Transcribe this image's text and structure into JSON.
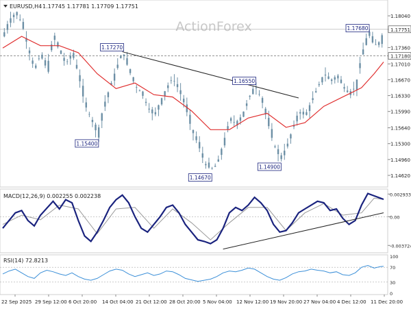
{
  "header": {
    "symbol": "EURUSD,H4",
    "ohlc": "1.17745 1.17781 1.17709 1.17751"
  },
  "watermark": "ActionForex",
  "chart_data": [
    {
      "type": "candlestick",
      "panel": "price",
      "ylim": [
        1.144,
        1.1835
      ],
      "y_ticks": [
        "1.18040",
        "1.17751",
        "1.17360",
        "1.17180",
        "1.17010",
        "1.16670",
        "1.16330",
        "1.15990",
        "1.15640",
        "1.15300",
        "1.14960",
        "1.14620"
      ],
      "current_price": "1.17751",
      "reference_price": "1.17180",
      "x_ticks": [
        "22 Sep 2025",
        "29 Sep 12:00",
        "6 Oct 20:00",
        "14 Oct 04:00",
        "21 Oct 12:00",
        "28 Oct 20:00",
        "5 Nov 04:00",
        "12 Nov 12:00",
        "19 Nov 20:00",
        "27 Nov 04:00",
        "4 Dec 12:00",
        "11 Dec 20:00"
      ],
      "price_path": [
        [
          0,
          1.176
        ],
        [
          2,
          1.1795
        ],
        [
          4,
          1.181
        ],
        [
          6,
          1.179
        ],
        [
          8,
          1.1735
        ],
        [
          10,
          1.169
        ],
        [
          12,
          1.172
        ],
        [
          14,
          1.169
        ],
        [
          16,
          1.176
        ],
        [
          18,
          1.173
        ],
        [
          20,
          1.17
        ],
        [
          22,
          1.1725
        ],
        [
          24,
          1.168
        ],
        [
          26,
          1.1615
        ],
        [
          28,
          1.1585
        ],
        [
          30,
          1.155
        ],
        [
          32,
          1.161
        ],
        [
          34,
          1.165
        ],
        [
          36,
          1.169
        ],
        [
          38,
          1.1727
        ],
        [
          40,
          1.169
        ],
        [
          42,
          1.1655
        ],
        [
          44,
          1.164
        ],
        [
          46,
          1.161
        ],
        [
          48,
          1.159
        ],
        [
          50,
          1.162
        ],
        [
          52,
          1.165
        ],
        [
          54,
          1.167
        ],
        [
          56,
          1.1645
        ],
        [
          58,
          1.161
        ],
        [
          60,
          1.156
        ],
        [
          62,
          1.153
        ],
        [
          64,
          1.149
        ],
        [
          66,
          1.1475
        ],
        [
          68,
          1.1485
        ],
        [
          70,
          1.153
        ],
        [
          72,
          1.158
        ],
        [
          74,
          1.1575
        ],
        [
          76,
          1.159
        ],
        [
          78,
          1.1625
        ],
        [
          80,
          1.1655
        ],
        [
          82,
          1.163
        ],
        [
          84,
          1.158
        ],
        [
          86,
          1.153
        ],
        [
          88,
          1.15
        ],
        [
          90,
          1.152
        ],
        [
          92,
          1.156
        ],
        [
          94,
          1.16
        ],
        [
          96,
          1.159
        ],
        [
          98,
          1.162
        ],
        [
          100,
          1.165
        ],
        [
          102,
          1.168
        ],
        [
          104,
          1.1665
        ],
        [
          106,
          1.1675
        ],
        [
          108,
          1.1655
        ],
        [
          110,
          1.164
        ],
        [
          112,
          1.165
        ],
        [
          114,
          1.172
        ],
        [
          116,
          1.1768
        ],
        [
          118,
          1.174
        ],
        [
          120,
          1.175
        ],
        [
          121,
          1.1775
        ]
      ],
      "ema_path": [
        [
          0,
          1.1735
        ],
        [
          6,
          1.176
        ],
        [
          12,
          1.174
        ],
        [
          18,
          1.174
        ],
        [
          24,
          1.1725
        ],
        [
          30,
          1.168
        ],
        [
          36,
          1.1648
        ],
        [
          42,
          1.166
        ],
        [
          48,
          1.1635
        ],
        [
          54,
          1.163
        ],
        [
          60,
          1.16
        ],
        [
          66,
          1.156
        ],
        [
          72,
          1.156
        ],
        [
          78,
          1.1585
        ],
        [
          84,
          1.1595
        ],
        [
          90,
          1.1565
        ],
        [
          96,
          1.1575
        ],
        [
          102,
          1.161
        ],
        [
          108,
          1.163
        ],
        [
          114,
          1.165
        ],
        [
          118,
          1.168
        ],
        [
          121,
          1.1705
        ]
      ],
      "annotations": [
        {
          "label": "1.15400",
          "at": [
            30,
            1.154
          ]
        },
        {
          "label": "1.17270",
          "at": [
            38,
            1.1727
          ]
        },
        {
          "label": "1.14670",
          "at": [
            66,
            1.1467
          ]
        },
        {
          "label": "1.16550",
          "at": [
            80,
            1.1655
          ]
        },
        {
          "label": "1.14900",
          "at": [
            88,
            1.149
          ]
        },
        {
          "label": "1.17680",
          "at": [
            116,
            1.1768
          ]
        }
      ],
      "trendline": [
        [
          38,
          1.1727
        ],
        [
          94,
          1.1628
        ]
      ]
    },
    {
      "type": "line",
      "panel": "macd",
      "title": "MACD(12,26,9) 0.002255 0.002238",
      "ylim": [
        -0.0045,
        0.0034
      ],
      "y_ticks": [
        "0.002933",
        "0.00",
        "-0.003724"
      ],
      "macd_path": [
        [
          0,
          -0.0015
        ],
        [
          4,
          0.0005
        ],
        [
          6,
          0.0008
        ],
        [
          8,
          -0.0005
        ],
        [
          10,
          -0.0012
        ],
        [
          12,
          0.0002
        ],
        [
          16,
          0.002
        ],
        [
          18,
          0.001
        ],
        [
          20,
          0.0022
        ],
        [
          22,
          0.0018
        ],
        [
          24,
          -0.0005
        ],
        [
          26,
          -0.0025
        ],
        [
          28,
          -0.0032
        ],
        [
          30,
          -0.002
        ],
        [
          32,
          -0.0005
        ],
        [
          34,
          0.0012
        ],
        [
          36,
          0.0022
        ],
        [
          38,
          0.0028
        ],
        [
          40,
          0.0018
        ],
        [
          42,
          0.0
        ],
        [
          44,
          -0.0015
        ],
        [
          46,
          -0.002
        ],
        [
          48,
          -0.001
        ],
        [
          50,
          0.0
        ],
        [
          52,
          0.0012
        ],
        [
          54,
          0.0015
        ],
        [
          56,
          0.0005
        ],
        [
          58,
          -0.001
        ],
        [
          60,
          -0.002
        ],
        [
          62,
          -0.003
        ],
        [
          64,
          -0.0032
        ],
        [
          66,
          -0.0035
        ],
        [
          68,
          -0.003
        ],
        [
          70,
          -0.0015
        ],
        [
          72,
          0.0005
        ],
        [
          74,
          0.0012
        ],
        [
          76,
          0.0008
        ],
        [
          78,
          0.0015
        ],
        [
          80,
          0.0025
        ],
        [
          82,
          0.0018
        ],
        [
          84,
          0.0008
        ],
        [
          86,
          -0.001
        ],
        [
          88,
          -0.002
        ],
        [
          90,
          -0.0018
        ],
        [
          92,
          -0.0008
        ],
        [
          94,
          0.0005
        ],
        [
          96,
          0.001
        ],
        [
          98,
          0.0015
        ],
        [
          100,
          0.002
        ],
        [
          102,
          0.0018
        ],
        [
          104,
          0.0008
        ],
        [
          106,
          0.001
        ],
        [
          108,
          -0.0002
        ],
        [
          110,
          -0.001
        ],
        [
          112,
          -0.0005
        ],
        [
          114,
          0.0015
        ],
        [
          116,
          0.003
        ],
        [
          118,
          0.0027
        ],
        [
          120,
          0.0024
        ],
        [
          121,
          0.00225
        ]
      ],
      "signal_path": [
        [
          0,
          -0.001
        ],
        [
          6,
          0.0002
        ],
        [
          12,
          -0.0004
        ],
        [
          18,
          0.0015
        ],
        [
          24,
          0.001
        ],
        [
          30,
          -0.0022
        ],
        [
          36,
          0.001
        ],
        [
          42,
          0.0012
        ],
        [
          48,
          -0.0015
        ],
        [
          54,
          0.001
        ],
        [
          60,
          -0.0008
        ],
        [
          66,
          -0.003
        ],
        [
          72,
          -0.0008
        ],
        [
          78,
          0.0012
        ],
        [
          84,
          0.0012
        ],
        [
          90,
          -0.0018
        ],
        [
          96,
          0.0005
        ],
        [
          102,
          0.0017
        ],
        [
          108,
          0.0002
        ],
        [
          114,
          0.0005
        ],
        [
          118,
          0.0024
        ],
        [
          121,
          0.00224
        ]
      ],
      "trendline": [
        [
          70,
          -0.0042
        ],
        [
          121,
          0.0005
        ]
      ]
    },
    {
      "type": "line",
      "panel": "rsi",
      "title": "RSI(14) 72.8213",
      "ylim": [
        0,
        100
      ],
      "y_ticks": [
        "100",
        "70",
        "30",
        "0"
      ],
      "rsi_path": [
        [
          0,
          52
        ],
        [
          2,
          60
        ],
        [
          4,
          65
        ],
        [
          6,
          55
        ],
        [
          8,
          45
        ],
        [
          10,
          40
        ],
        [
          12,
          55
        ],
        [
          14,
          62
        ],
        [
          16,
          58
        ],
        [
          18,
          52
        ],
        [
          20,
          48
        ],
        [
          22,
          55
        ],
        [
          24,
          45
        ],
        [
          26,
          38
        ],
        [
          28,
          35
        ],
        [
          30,
          40
        ],
        [
          32,
          50
        ],
        [
          34,
          60
        ],
        [
          36,
          65
        ],
        [
          38,
          62
        ],
        [
          40,
          52
        ],
        [
          42,
          45
        ],
        [
          44,
          50
        ],
        [
          46,
          55
        ],
        [
          48,
          48
        ],
        [
          50,
          52
        ],
        [
          52,
          60
        ],
        [
          54,
          58
        ],
        [
          56,
          50
        ],
        [
          58,
          40
        ],
        [
          60,
          36
        ],
        [
          62,
          32
        ],
        [
          64,
          35
        ],
        [
          66,
          38
        ],
        [
          68,
          45
        ],
        [
          70,
          55
        ],
        [
          72,
          60
        ],
        [
          74,
          58
        ],
        [
          76,
          62
        ],
        [
          78,
          68
        ],
        [
          80,
          65
        ],
        [
          82,
          55
        ],
        [
          84,
          45
        ],
        [
          86,
          38
        ],
        [
          88,
          35
        ],
        [
          90,
          42
        ],
        [
          92,
          52
        ],
        [
          94,
          58
        ],
        [
          96,
          60
        ],
        [
          98,
          65
        ],
        [
          100,
          62
        ],
        [
          102,
          60
        ],
        [
          104,
          55
        ],
        [
          106,
          58
        ],
        [
          108,
          50
        ],
        [
          110,
          48
        ],
        [
          112,
          55
        ],
        [
          114,
          70
        ],
        [
          116,
          75
        ],
        [
          118,
          68
        ],
        [
          120,
          72
        ],
        [
          121,
          72.8
        ]
      ]
    }
  ],
  "colors": {
    "background": "#ffffff",
    "candle": "#6c8fa5",
    "ema": "#e03030",
    "trendline": "#222222",
    "macd": "#1a237e",
    "signal": "#999999",
    "rsi": "#3b8fd8",
    "label_text": "#1a237e",
    "grid": "#cfcfcf",
    "watermark": "#c8c8c8"
  }
}
